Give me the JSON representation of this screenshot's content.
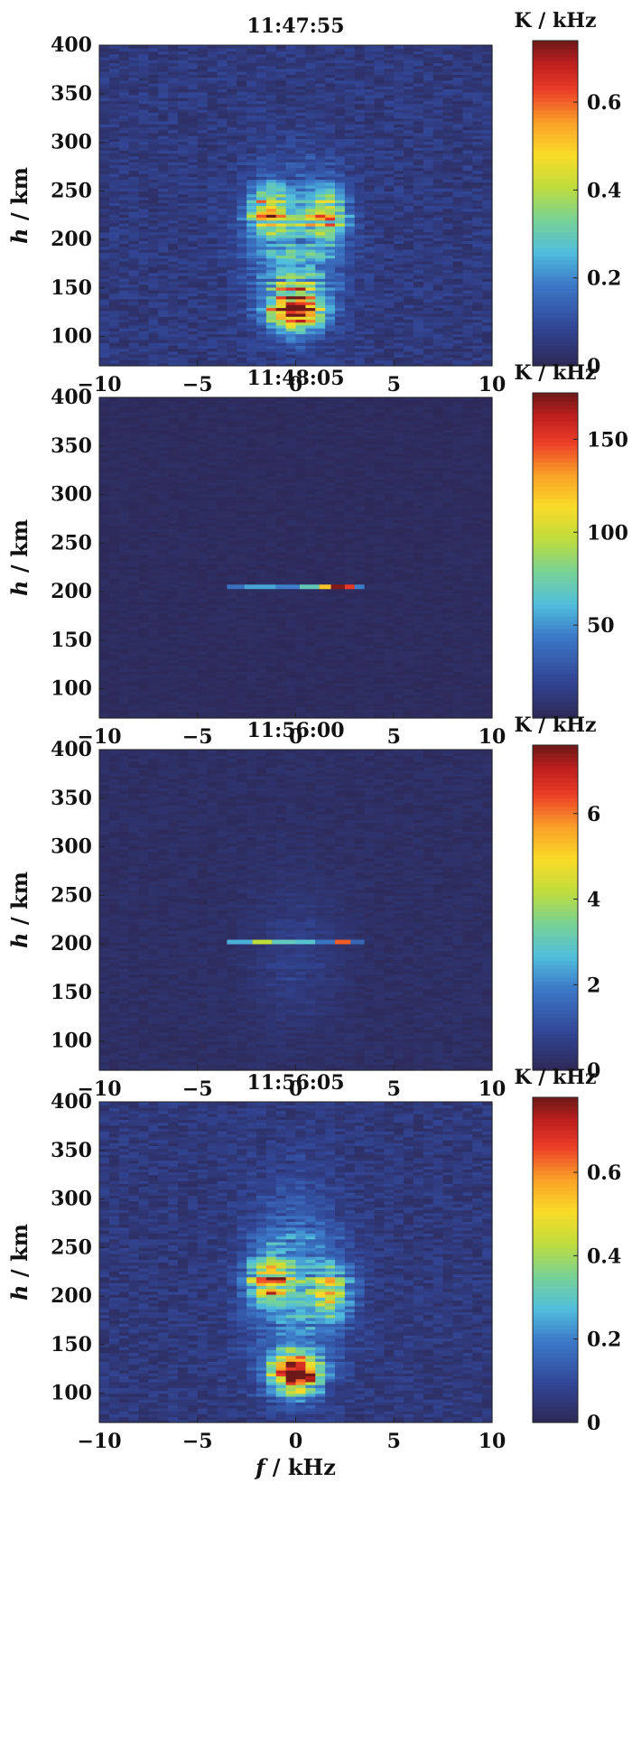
{
  "chart_data": [
    {
      "type": "heatmap",
      "title": "11:47:55",
      "xlabel_var": "f",
      "xlabel_unit": " / kHz",
      "ylabel_var": "h",
      "ylabel_unit": " / km",
      "xlim": [
        -10,
        10
      ],
      "ylim": [
        70,
        400
      ],
      "xticks": [
        "−10",
        "−5",
        "0",
        "5",
        "10"
      ],
      "yticks": [
        "100",
        "150",
        "200",
        "250",
        "300",
        "350",
        "400"
      ],
      "colorbar": {
        "label": "K / kHz",
        "min": 0,
        "max": 0.74,
        "ticks": [
          "0",
          "0.2",
          "0.4",
          "0.6"
        ],
        "tick_values": [
          0,
          0.2,
          0.4,
          0.6
        ]
      },
      "features": {
        "background": 0.05,
        "blobs": [
          {
            "f": 0,
            "h": 130,
            "sf": 1.3,
            "sh": 22,
            "amp": 0.68
          },
          {
            "f": -1.4,
            "h": 228,
            "sf": 1.0,
            "sh": 25,
            "amp": 0.38
          },
          {
            "f": 1.6,
            "h": 225,
            "sf": 1.0,
            "sh": 28,
            "amp": 0.33
          },
          {
            "f": 0,
            "h": 195,
            "sf": 2.2,
            "sh": 75,
            "amp": 0.18
          }
        ],
        "lines": []
      }
    },
    {
      "type": "heatmap",
      "title": "11:48:05",
      "xlabel_var": "f",
      "xlabel_unit": " / kHz",
      "ylabel_var": "h",
      "ylabel_unit": " / km",
      "xlim": [
        -10,
        10
      ],
      "ylim": [
        70,
        400
      ],
      "xticks": [
        "−10",
        "−5",
        "0",
        "5",
        "10"
      ],
      "yticks": [
        "100",
        "150",
        "200",
        "250",
        "300",
        "350",
        "400"
      ],
      "colorbar": {
        "label": "K / kHz",
        "min": 0,
        "max": 175,
        "ticks": [
          "50",
          "100",
          "150"
        ],
        "tick_values": [
          50,
          100,
          150
        ]
      },
      "features": {
        "background": 3,
        "blobs": [],
        "lines": [
          {
            "h": 205,
            "f0": -3.5,
            "f1": 3.5,
            "segments": [
              {
                "f0": -3.5,
                "f1": -2.6,
                "v": 40
              },
              {
                "f0": -2.6,
                "f1": -1.0,
                "v": 55
              },
              {
                "f0": -1.0,
                "f1": 0.2,
                "v": 45
              },
              {
                "f0": 0.2,
                "f1": 1.2,
                "v": 70
              },
              {
                "f0": 1.2,
                "f1": 1.8,
                "v": 120
              },
              {
                "f0": 1.8,
                "f1": 2.5,
                "v": 172
              },
              {
                "f0": 2.5,
                "f1": 3.0,
                "v": 150
              },
              {
                "f0": 3.0,
                "f1": 3.5,
                "v": 45
              }
            ]
          }
        ]
      }
    },
    {
      "type": "heatmap",
      "title": "11:56:00",
      "xlabel_var": "f",
      "xlabel_unit": " / kHz",
      "ylabel_var": "h",
      "ylabel_unit": " / km",
      "xlim": [
        -10,
        10
      ],
      "ylim": [
        70,
        400
      ],
      "xticks": [
        "−10",
        "−5",
        "0",
        "5",
        "10"
      ],
      "yticks": [
        "100",
        "150",
        "200",
        "250",
        "300",
        "350",
        "400"
      ],
      "colorbar": {
        "label": "K / kHz",
        "min": 0,
        "max": 7.6,
        "ticks": [
          "0",
          "2",
          "4",
          "6"
        ],
        "tick_values": [
          0,
          2,
          4,
          6
        ]
      },
      "features": {
        "background": 0.2,
        "blobs": [
          {
            "f": 0,
            "h": 190,
            "sf": 2.2,
            "sh": 70,
            "amp": 0.5
          }
        ],
        "lines": [
          {
            "h": 202,
            "f0": -3.5,
            "f1": 3.5,
            "segments": [
              {
                "f0": -3.5,
                "f1": -2.2,
                "v": 2.5
              },
              {
                "f0": -2.2,
                "f1": -1.2,
                "v": 4.2
              },
              {
                "f0": -1.2,
                "f1": 0.0,
                "v": 3.0
              },
              {
                "f0": 0.0,
                "f1": 1.0,
                "v": 2.8
              },
              {
                "f0": 1.0,
                "f1": 2.0,
                "v": 1.8
              },
              {
                "f0": 2.0,
                "f1": 2.8,
                "v": 6.2
              },
              {
                "f0": 2.8,
                "f1": 3.5,
                "v": 1.5
              }
            ]
          }
        ]
      }
    },
    {
      "type": "heatmap",
      "title": "11:56:05",
      "xlabel_var": "f",
      "xlabel_unit": " / kHz",
      "ylabel_var": "h",
      "ylabel_unit": " / km",
      "xlim": [
        -10,
        10
      ],
      "ylim": [
        70,
        400
      ],
      "xticks": [
        "−10",
        "−5",
        "0",
        "5",
        "10"
      ],
      "yticks": [
        "100",
        "150",
        "200",
        "250",
        "300",
        "350",
        "400"
      ],
      "colorbar": {
        "label": "K / kHz",
        "min": 0,
        "max": 0.78,
        "ticks": [
          "0",
          "0.2",
          "0.4",
          "0.6"
        ],
        "tick_values": [
          0,
          0.2,
          0.4,
          0.6
        ]
      },
      "features": {
        "background": 0.05,
        "blobs": [
          {
            "f": 0,
            "h": 120,
            "sf": 1.2,
            "sh": 20,
            "amp": 0.72
          },
          {
            "f": -1.4,
            "h": 218,
            "sf": 1.0,
            "sh": 25,
            "amp": 0.42
          },
          {
            "f": 1.8,
            "h": 205,
            "sf": 1.0,
            "sh": 28,
            "amp": 0.3
          },
          {
            "f": 0,
            "h": 210,
            "sf": 2.3,
            "sh": 90,
            "amp": 0.18
          }
        ],
        "lines": []
      }
    }
  ]
}
